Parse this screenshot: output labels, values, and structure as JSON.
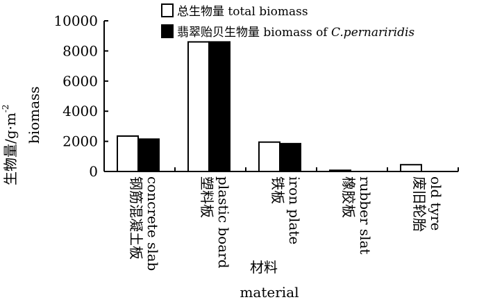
{
  "chart_data": {
    "type": "bar",
    "categories": [
      {
        "zh": "钢筋混凝土板",
        "en": "concrete slab"
      },
      {
        "zh": "塑料板",
        "en": "plastic board"
      },
      {
        "zh": "铁板",
        "en": "iron plate"
      },
      {
        "zh": "橡胶板",
        "en": "rubber slat"
      },
      {
        "zh": "废旧轮胎",
        "en": "old tyre"
      }
    ],
    "series": [
      {
        "name": "总生物量 total biomass",
        "name_zh": "总生物量",
        "name_en": "total biomass",
        "fill": "#ffffff",
        "values": [
          2350,
          8600,
          1950,
          80,
          450
        ]
      },
      {
        "name": "翡翠贻贝生物量 biomass of C.pernariridis",
        "name_zh": "翡翠贻贝生物量",
        "name_en": "biomass of ",
        "name_en_italic": "C.pernariridis",
        "fill": "#000000",
        "values": [
          2150,
          8600,
          1850,
          0,
          0
        ]
      }
    ],
    "ylim": [
      0,
      10000
    ],
    "yticks": [
      0,
      2000,
      4000,
      6000,
      8000,
      10000
    ],
    "ylabel_zh": "生物量/g·m",
    "ylabel_sup": "-2",
    "ylabel_en": "biomass",
    "xlabel_zh": "材料",
    "xlabel_en": "material",
    "grid": false,
    "legend_position": "top"
  }
}
